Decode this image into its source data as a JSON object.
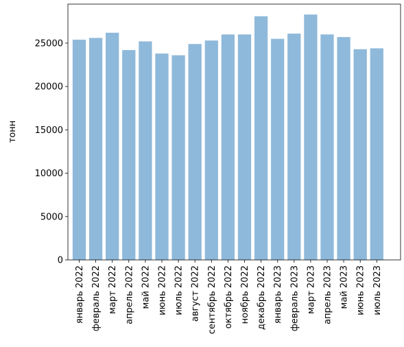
{
  "chart_data": {
    "type": "bar",
    "title": "",
    "xlabel": "",
    "ylabel": "тонн",
    "categories": [
      "январь 2022",
      "февраль 2022",
      "март 2022",
      "апрель 2022",
      "май 2022",
      "июнь 2022",
      "июль 2022",
      "август 2022",
      "сентябрь 2022",
      "октябрь 2022",
      "ноябрь 2022",
      "декабрь 2022",
      "январь 2023",
      "февраль 2023",
      "март 2023",
      "апрель 2023",
      "май 2023",
      "июнь 2023",
      "июль 2023"
    ],
    "values": [
      25400,
      25600,
      26200,
      24200,
      25200,
      23800,
      23600,
      24900,
      25300,
      26000,
      26000,
      28100,
      25500,
      26100,
      28300,
      26000,
      25700,
      24300,
      24400
    ],
    "ylim": [
      0,
      29500
    ],
    "yticks": [
      0,
      5000,
      10000,
      15000,
      20000,
      25000
    ],
    "grid": false,
    "bar_color": "#8fb9da",
    "axis_color": "#000000"
  }
}
